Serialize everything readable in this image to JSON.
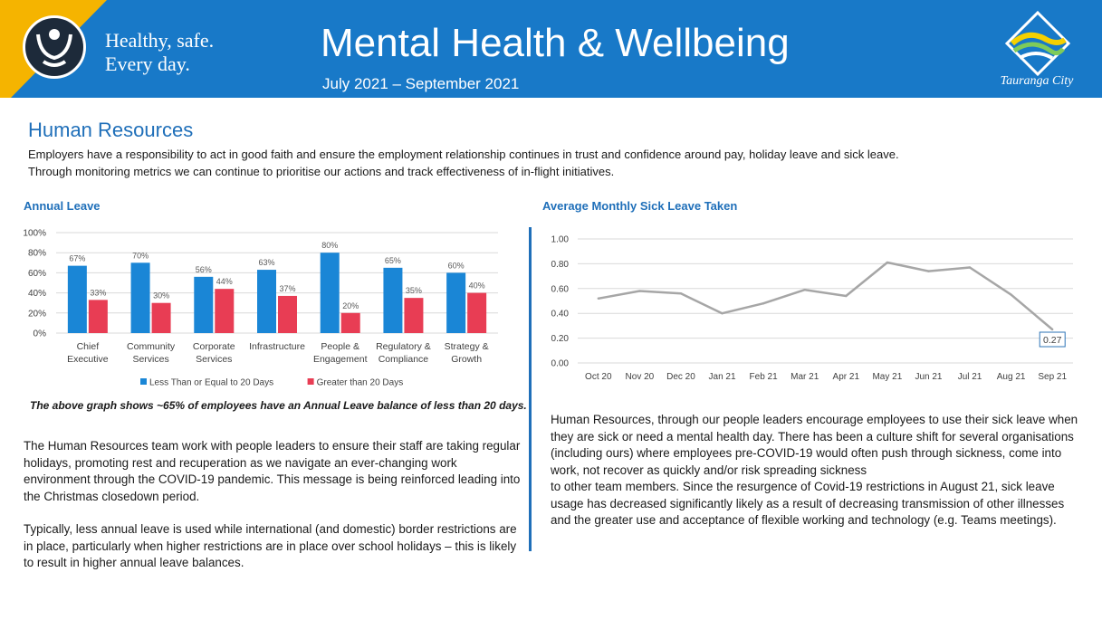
{
  "header": {
    "tagline_line1": "Healthy, safe.",
    "tagline_line2": "Every day.",
    "title": "Mental Health & Wellbeing",
    "subtitle": "July 2021 – September 2021",
    "city_name": "Tauranga City",
    "colors": {
      "banner": "#1879c8",
      "accent_yellow": "#f5b400"
    }
  },
  "section": {
    "title": "Human Resources",
    "intro_line1": "Employers have a responsibility to act in good faith and ensure the employment relationship continues in trust and confidence around pay, holiday leave and sick leave.",
    "intro_line2": "Through monitoring metrics we can continue to prioritise our actions and track effectiveness of in-flight initiatives."
  },
  "chart_data": [
    {
      "type": "bar",
      "title": "Annual Leave",
      "categories": [
        [
          "Chief",
          "Executive"
        ],
        [
          "Community",
          "Services"
        ],
        [
          "Corporate",
          "Services"
        ],
        [
          "Infrastructure"
        ],
        [
          "People &",
          "Engagement"
        ],
        [
          "Regulatory &",
          "Compliance"
        ],
        [
          "Strategy &",
          "Growth"
        ]
      ],
      "series": [
        {
          "name": "Less Than or Equal to 20 Days",
          "values": [
            67,
            70,
            56,
            63,
            80,
            65,
            60
          ],
          "color": "#1a86d6"
        },
        {
          "name": "Greater than 20 Days",
          "values": [
            33,
            30,
            44,
            37,
            20,
            35,
            40
          ],
          "color": "#e83d54"
        }
      ],
      "yticks": [
        "0%",
        "20%",
        "40%",
        "60%",
        "80%",
        "100%"
      ],
      "ylim": [
        0,
        100
      ],
      "data_label_suffix": "%",
      "grid": true,
      "legend_position": "bottom"
    },
    {
      "type": "line",
      "title": "Average Monthly Sick Leave Taken",
      "categories": [
        "Oct 20",
        "Nov 20",
        "Dec 20",
        "Jan 21",
        "Feb 21",
        "Mar 21",
        "Apr 21",
        "May 21",
        "Jun 21",
        "Jul 21",
        "Aug 21",
        "Sep 21"
      ],
      "values": [
        0.52,
        0.58,
        0.56,
        0.4,
        0.48,
        0.59,
        0.54,
        0.81,
        0.74,
        0.77,
        0.55,
        0.27
      ],
      "yticks": [
        "0.00",
        "0.20",
        "0.40",
        "0.60",
        "0.80",
        "1.00"
      ],
      "ylim": [
        0,
        1
      ],
      "annotation": "0.27",
      "color": "#a6a6a6",
      "grid": true
    }
  ],
  "annual_leave_note": "The above graph shows ~65% of employees have an Annual Leave balance of less than 20 days.",
  "left_text": {
    "p1": "The Human Resources team work with people leaders to ensure their staff are taking regular holidays, promoting rest and recuperation as we navigate an ever-changing work environment through the COVID-19 pandemic.  This message is being reinforced leading into the Christmas closedown period.",
    "p2": "Typically, less annual leave is used while international (and domestic) border restrictions are in place, particularly when higher restrictions are in place over school holidays – this is likely to result in higher annual leave balances."
  },
  "right_text": {
    "p1": "Human Resources, through our people leaders encourage employees to use their sick leave when they are sick or need a mental health day. There has been a culture shift for several organisations (including ours) where employees pre-COVID-19 would often push through sickness, come into work, not recover as quickly and/or risk spreading sickness",
    "p2": "to other team members. Since the resurgence of Covid-19 restrictions in August 21, sick leave usage has decreased significantly likely as a result of decreasing transmission of other illnesses and the greater use and acceptance of flexible working and technology (e.g. Teams meetings)."
  }
}
